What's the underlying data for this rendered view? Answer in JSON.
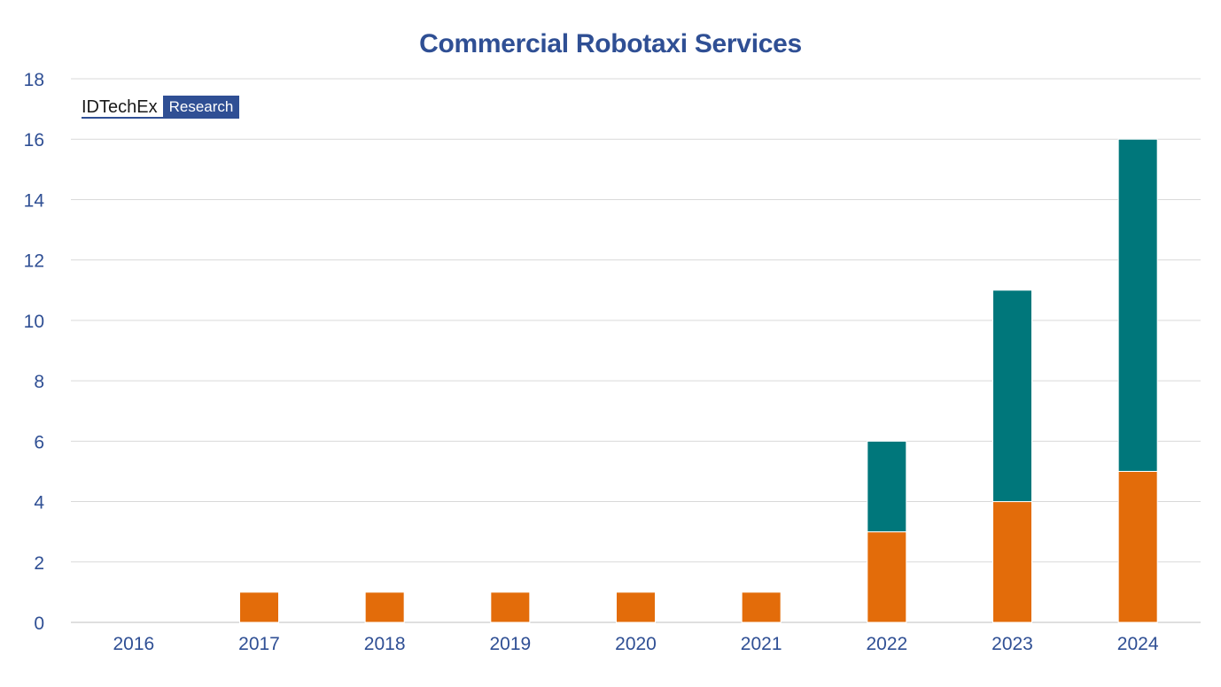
{
  "title": "Commercial Robotaxi Services",
  "logo": {
    "brand": "IDTechEx",
    "tag": "Research"
  },
  "colors": {
    "bottom": "#e36c0a",
    "top": "#00777b",
    "title": "#2f4f94",
    "grid": "#d9d9d9"
  },
  "chart_data": {
    "type": "bar",
    "stacked": true,
    "title": "Commercial Robotaxi Services",
    "xlabel": "",
    "ylabel": "",
    "ylim": [
      0,
      18
    ],
    "yticks": [
      0,
      2,
      4,
      6,
      8,
      10,
      12,
      14,
      16,
      18
    ],
    "categories": [
      "2016",
      "2017",
      "2018",
      "2019",
      "2020",
      "2021",
      "2022",
      "2023",
      "2024"
    ],
    "series": [
      {
        "name": "series-bottom",
        "color": "#e36c0a",
        "values": [
          0,
          1,
          1,
          1,
          1,
          1,
          3,
          4,
          5
        ]
      },
      {
        "name": "series-top",
        "color": "#00777b",
        "values": [
          0,
          0,
          0,
          0,
          0,
          0,
          3,
          7,
          11
        ]
      }
    ],
    "grid": true,
    "legend": "none"
  }
}
